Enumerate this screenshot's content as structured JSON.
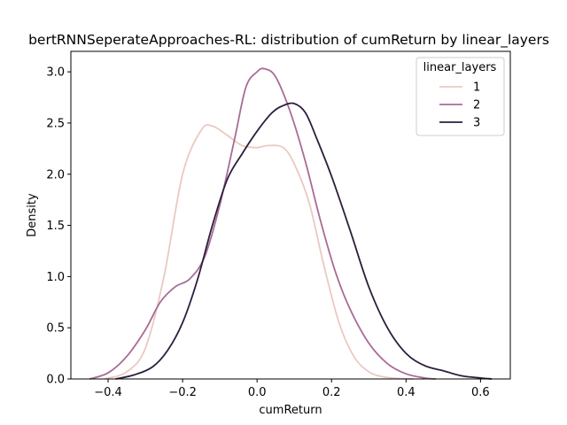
{
  "chart_data": {
    "type": "line",
    "title": "bertRNNSeperateApproaches-RL: distribution of cumReturn by linear_layers",
    "xlabel": "cumReturn",
    "ylabel": "Density",
    "xlim": [
      -0.5,
      0.68
    ],
    "ylim": [
      0,
      3.2
    ],
    "xticks": [
      -0.4,
      -0.2,
      0.0,
      0.2,
      0.4,
      0.6
    ],
    "xtick_labels": [
      "−0.4",
      "−0.2",
      "0.0",
      "0.2",
      "0.4",
      "0.6"
    ],
    "yticks": [
      0,
      0.5,
      1.0,
      1.5,
      2.0,
      2.5,
      3.0
    ],
    "ytick_labels": [
      "0.0",
      "0.5",
      "1.0",
      "1.5",
      "2.0",
      "2.5",
      "3.0"
    ],
    "grid": false,
    "legend": {
      "title": "linear_layers",
      "placement": "top-right"
    },
    "series": [
      {
        "name": "1",
        "color": "#ebc9c2",
        "x": [
          -0.41,
          -0.35,
          -0.3,
          -0.25,
          -0.2,
          -0.15,
          -0.12,
          -0.08,
          -0.04,
          0.0,
          0.03,
          0.07,
          0.1,
          0.14,
          0.18,
          0.22,
          0.26,
          0.3,
          0.34,
          0.38,
          0.42
        ],
        "y": [
          0.0,
          0.07,
          0.3,
          1.0,
          2.0,
          2.43,
          2.47,
          2.38,
          2.28,
          2.26,
          2.28,
          2.26,
          2.1,
          1.72,
          1.1,
          0.55,
          0.22,
          0.07,
          0.02,
          0.005,
          0.0
        ]
      },
      {
        "name": "2",
        "color": "#a96b95",
        "x": [
          -0.45,
          -0.4,
          -0.35,
          -0.3,
          -0.26,
          -0.22,
          -0.18,
          -0.14,
          -0.1,
          -0.06,
          -0.03,
          0.0,
          0.02,
          0.05,
          0.09,
          0.13,
          0.17,
          0.21,
          0.25,
          0.3,
          0.35,
          0.4,
          0.45,
          0.48
        ],
        "y": [
          0.0,
          0.06,
          0.22,
          0.48,
          0.75,
          0.9,
          0.98,
          1.2,
          1.7,
          2.35,
          2.85,
          3.0,
          3.03,
          2.95,
          2.6,
          2.12,
          1.55,
          1.05,
          0.68,
          0.35,
          0.15,
          0.05,
          0.01,
          0.0
        ]
      },
      {
        "name": "3",
        "color": "#2d1e3e",
        "x": [
          -0.38,
          -0.33,
          -0.28,
          -0.24,
          -0.2,
          -0.16,
          -0.12,
          -0.08,
          -0.04,
          0.0,
          0.04,
          0.07,
          0.1,
          0.13,
          0.16,
          0.2,
          0.25,
          0.3,
          0.35,
          0.4,
          0.45,
          0.5,
          0.55,
          0.6,
          0.63
        ],
        "y": [
          0.0,
          0.04,
          0.12,
          0.28,
          0.55,
          0.97,
          1.5,
          1.95,
          2.2,
          2.42,
          2.6,
          2.67,
          2.69,
          2.6,
          2.35,
          1.98,
          1.45,
          0.9,
          0.5,
          0.25,
          0.13,
          0.08,
          0.03,
          0.01,
          0.0
        ]
      }
    ]
  }
}
